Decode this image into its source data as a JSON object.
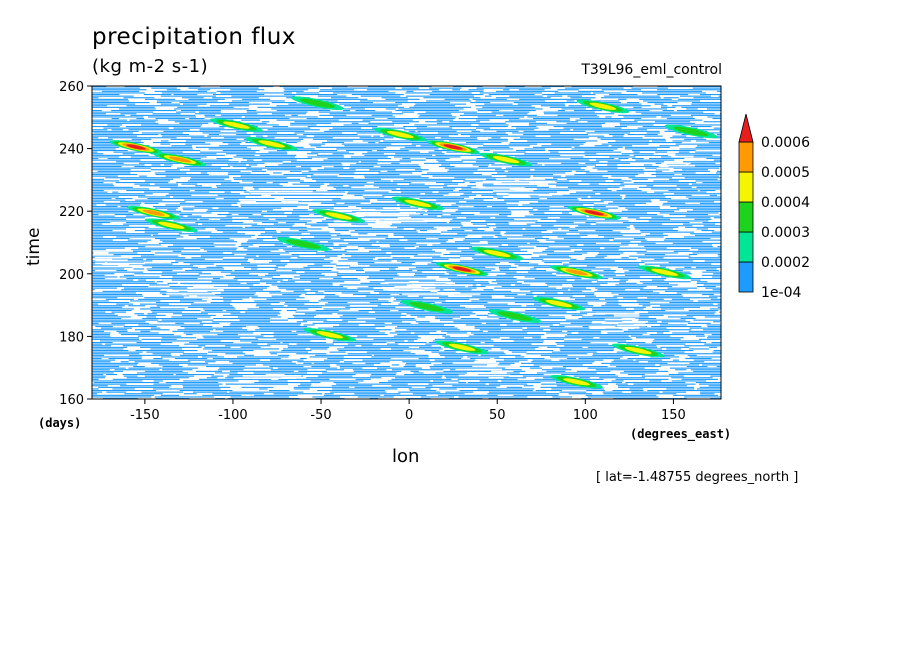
{
  "chart_data": {
    "type": "heatmap",
    "title": "precipitation flux",
    "units": "(kg m-2 s-1)",
    "run_label": "T39L96_eml_control",
    "xlabel": "lon",
    "ylabel": "time",
    "x_unit": "(degrees_east)",
    "y_unit": "(days)",
    "xlim": [
      -180,
      177
    ],
    "ylim": [
      160,
      260
    ],
    "x_ticks": [
      -150,
      -100,
      -50,
      0,
      50,
      100,
      150
    ],
    "y_ticks": [
      160,
      180,
      200,
      220,
      240,
      260
    ],
    "colorbar": {
      "levels": [
        0.0001,
        0.0002,
        0.0003,
        0.0004,
        0.0005,
        0.0006
      ],
      "labels": [
        "1e-04",
        "0.0002",
        "0.0003",
        "0.0004",
        "0.0005",
        "0.0006"
      ],
      "colors": [
        "#1e9bff",
        "#00e596",
        "#1ed21e",
        "#f5f500",
        "#ff9a00",
        "#e61e1e"
      ],
      "extend": "max"
    },
    "footnote": "[ lat=-1.48755 degrees_north ]",
    "features": [
      {
        "lon": -155,
        "time": 240.5,
        "intensity": 5
      },
      {
        "lon": -130,
        "time": 236.5,
        "intensity": 4
      },
      {
        "lon": -145,
        "time": 219.5,
        "intensity": 4
      },
      {
        "lon": -135,
        "time": 215.5,
        "intensity": 3
      },
      {
        "lon": -98,
        "time": 247.5,
        "intensity": 3
      },
      {
        "lon": -78,
        "time": 241.5,
        "intensity": 3
      },
      {
        "lon": -40,
        "time": 218.5,
        "intensity": 3
      },
      {
        "lon": -60,
        "time": 209.5,
        "intensity": 2
      },
      {
        "lon": -45,
        "time": 180.5,
        "intensity": 3
      },
      {
        "lon": -52,
        "time": 254.5,
        "intensity": 2
      },
      {
        "lon": -5,
        "time": 244.5,
        "intensity": 3
      },
      {
        "lon": 25,
        "time": 240.5,
        "intensity": 5
      },
      {
        "lon": 55,
        "time": 236.5,
        "intensity": 3
      },
      {
        "lon": 5,
        "time": 222.5,
        "intensity": 3
      },
      {
        "lon": 30,
        "time": 201.5,
        "intensity": 6
      },
      {
        "lon": 50,
        "time": 206.5,
        "intensity": 3
      },
      {
        "lon": 95,
        "time": 200.5,
        "intensity": 4
      },
      {
        "lon": 105,
        "time": 219.5,
        "intensity": 6
      },
      {
        "lon": 145,
        "time": 200.5,
        "intensity": 3
      },
      {
        "lon": 85,
        "time": 190.5,
        "intensity": 3
      },
      {
        "lon": 130,
        "time": 175.5,
        "intensity": 3
      },
      {
        "lon": 30,
        "time": 176.5,
        "intensity": 3
      },
      {
        "lon": 110,
        "time": 253.5,
        "intensity": 3
      },
      {
        "lon": 160,
        "time": 245.5,
        "intensity": 2
      },
      {
        "lon": 95,
        "time": 165.5,
        "intensity": 3
      },
      {
        "lon": 60,
        "time": 186.5,
        "intensity": 2
      },
      {
        "lon": 10,
        "time": 189.5,
        "intensity": 2
      }
    ]
  }
}
